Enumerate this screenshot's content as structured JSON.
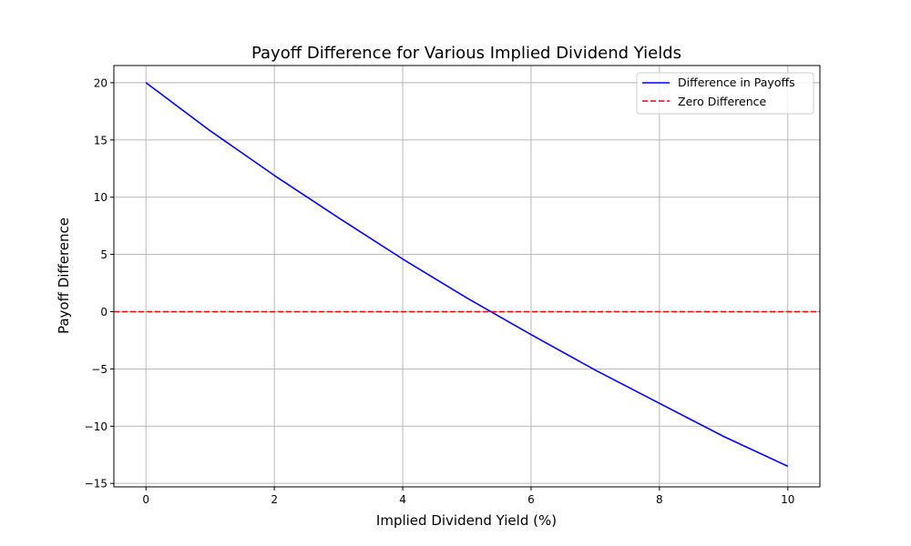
{
  "chart_data": {
    "type": "line",
    "title": "Payoff Difference for Various Implied Dividend Yields",
    "xlabel": "Implied Dividend Yield (%)",
    "ylabel": "Payoff Difference",
    "xlim": [
      -0.5,
      10.5
    ],
    "ylim": [
      -15.3,
      21.5
    ],
    "xticks": [
      0,
      2,
      4,
      6,
      8,
      10
    ],
    "yticks": [
      20,
      15,
      10,
      5,
      0,
      -5,
      -10,
      -15
    ],
    "ytick_labels": [
      "20",
      "15",
      "10",
      "5",
      "0",
      "−5",
      "−10",
      "−15"
    ],
    "grid": true,
    "legend_position": "top-right",
    "series": [
      {
        "name": "Difference in Payoffs",
        "color": "#0000ff",
        "style": "solid",
        "x": [
          0,
          1,
          2,
          3,
          4,
          5,
          6,
          7,
          8,
          9,
          10
        ],
        "y": [
          20.0,
          15.8,
          11.9,
          8.2,
          4.6,
          1.2,
          -2.0,
          -5.1,
          -8.0,
          -10.9,
          -13.5
        ]
      },
      {
        "name": "Zero Difference",
        "color": "#ff0000",
        "style": "dashed",
        "y_constant": 0
      }
    ]
  }
}
